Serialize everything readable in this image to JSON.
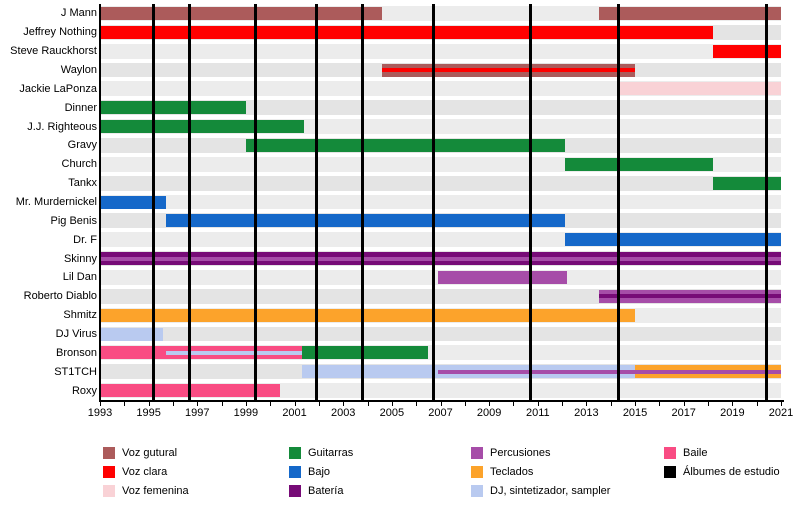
{
  "chart_data": {
    "type": "timeline",
    "title": "",
    "xlabel": "",
    "ylabel": "",
    "grid": false,
    "legend_position": "bottom",
    "x_axis": {
      "start": 1993,
      "end": 2021,
      "year_tick_interval": 1,
      "label_interval": 2,
      "tick_labels": [
        "1993",
        "1995",
        "1997",
        "1999",
        "2001",
        "2003",
        "2005",
        "2007",
        "2009",
        "2011",
        "2013",
        "2015",
        "2017",
        "2019",
        "2021"
      ]
    },
    "roles": {
      "voz_gutural": {
        "label": "Voz gutural",
        "color": "#AC5B5B"
      },
      "voz_clara": {
        "label": "Voz clara",
        "color": "#FF0000"
      },
      "voz_femenina": {
        "label": "Voz femenina",
        "color": "#F9D2D6"
      },
      "guitarras": {
        "label": "Guitarras",
        "color": "#148A3A"
      },
      "bajo": {
        "label": "Bajo",
        "color": "#1568C9"
      },
      "bateria": {
        "label": "Batería",
        "color": "#770B77"
      },
      "percusiones": {
        "label": "Percusiones",
        "color": "#A64DA8"
      },
      "teclados": {
        "label": "Teclados",
        "color": "#FCA32B"
      },
      "dj": {
        "label": "DJ, sintetizador, sampler",
        "color": "#B9CAF0"
      },
      "baile": {
        "label": "Baile",
        "color": "#F94C83"
      },
      "albumes": {
        "label": "Álbumes de estudio",
        "color": "#000000"
      }
    },
    "members": [
      {
        "name": "J Mann",
        "segments": [
          {
            "from": 1993,
            "to": 2004.6,
            "role": "voz_gutural"
          },
          {
            "from": 2013.5,
            "to": 2021,
            "role": "voz_gutural"
          }
        ]
      },
      {
        "name": "Jeffrey Nothing",
        "segments": [
          {
            "from": 1993,
            "to": 2018.2,
            "role": "voz_clara"
          }
        ]
      },
      {
        "name": "Steve Rauckhorst",
        "segments": [
          {
            "from": 2018.2,
            "to": 2021,
            "role": "voz_clara"
          }
        ]
      },
      {
        "name": "Waylon",
        "segments": [
          {
            "from": 2004.6,
            "to": 2015,
            "role": "voz_gutural",
            "stripe": "voz_clara"
          }
        ]
      },
      {
        "name": "Jackie LaPonza",
        "segments": [
          {
            "from": 2014.4,
            "to": 2021,
            "role": "voz_femenina"
          }
        ]
      },
      {
        "name": "Dinner",
        "segments": [
          {
            "from": 1993,
            "to": 1999,
            "role": "guitarras"
          }
        ]
      },
      {
        "name": "J.J. Righteous",
        "segments": [
          {
            "from": 1993,
            "to": 2001.4,
            "role": "guitarras"
          }
        ]
      },
      {
        "name": "Gravy",
        "segments": [
          {
            "from": 1999,
            "to": 2012.1,
            "role": "guitarras"
          }
        ]
      },
      {
        "name": "Church",
        "segments": [
          {
            "from": 2012.1,
            "to": 2018.2,
            "role": "guitarras"
          }
        ]
      },
      {
        "name": "Tankx",
        "segments": [
          {
            "from": 2018.2,
            "to": 2021,
            "role": "guitarras"
          }
        ]
      },
      {
        "name": "Mr. Murdernickel",
        "segments": [
          {
            "from": 1993,
            "to": 1995.7,
            "role": "bajo"
          }
        ]
      },
      {
        "name": "Pig Benis",
        "segments": [
          {
            "from": 1995.7,
            "to": 2012.1,
            "role": "bajo"
          }
        ]
      },
      {
        "name": "Dr. F",
        "segments": [
          {
            "from": 2012.1,
            "to": 2021,
            "role": "bajo"
          }
        ]
      },
      {
        "name": "Skinny",
        "segments": [
          {
            "from": 1993,
            "to": 2021,
            "role": "bateria",
            "stripe": "percusiones"
          }
        ]
      },
      {
        "name": "Lil Dan",
        "segments": [
          {
            "from": 2006.9,
            "to": 2012.2,
            "role": "percusiones"
          }
        ]
      },
      {
        "name": "Roberto Diablo",
        "segments": [
          {
            "from": 2013.5,
            "to": 2021,
            "role": "percusiones",
            "stripe": "bateria"
          }
        ]
      },
      {
        "name": "Shmitz",
        "segments": [
          {
            "from": 1993,
            "to": 2015,
            "role": "teclados"
          }
        ]
      },
      {
        "name": "DJ Virus",
        "segments": [
          {
            "from": 1993,
            "to": 1995.6,
            "role": "dj"
          }
        ]
      },
      {
        "name": "Bronson",
        "segments": [
          {
            "from": 1993,
            "to": 2001.3,
            "role": "baile",
            "stripe": "dj",
            "stripe_from": 1995.7
          },
          {
            "from": 2001.3,
            "to": 2006.5,
            "role": "guitarras"
          }
        ]
      },
      {
        "name": "ST1TCH",
        "segments": [
          {
            "from": 2001.3,
            "to": 2015,
            "role": "dj",
            "stripe": "percusiones",
            "stripe_from": 2006.9
          },
          {
            "from": 2015,
            "to": 2021,
            "role": "teclados",
            "stripe": "percusiones"
          }
        ]
      },
      {
        "name": "Roxy",
        "segments": [
          {
            "from": 1993,
            "to": 2000.4,
            "role": "baile"
          }
        ]
      }
    ],
    "album_release_years": [
      1995.2,
      1996.7,
      1999.4,
      2001.9,
      2003.8,
      2006.7,
      2010.7,
      2014.3,
      2020.4
    ]
  },
  "legend": {
    "columns": [
      [
        "voz_gutural",
        "voz_clara",
        "voz_femenina"
      ],
      [
        "guitarras",
        "bajo",
        "bateria"
      ],
      [
        "percusiones",
        "teclados",
        "dj"
      ],
      [
        "baile",
        "albumes"
      ]
    ]
  },
  "style": {
    "band_color_even": "#ECECEC",
    "band_color_odd": "#E4E4E4",
    "album_line_color": "#000000"
  }
}
